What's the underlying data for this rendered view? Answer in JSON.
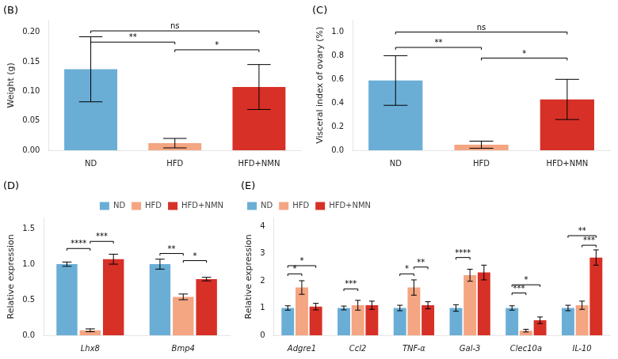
{
  "chart_data": [
    {
      "type": "bar",
      "title": "(B)",
      "categories": [
        "ND",
        "HFD",
        "HFD+NMN"
      ],
      "values": [
        0.137,
        0.012,
        0.107
      ],
      "errors": [
        0.055,
        0.008,
        0.038
      ],
      "colors": [
        "#6aaed6",
        "#f4a582",
        "#d73027"
      ],
      "ylabel": "Weight (g)",
      "ylim": [
        0,
        0.22
      ],
      "yticks": [
        {
          "value": 0.0,
          "label": "0.00"
        },
        0.05,
        {
          "value": 0.1,
          "label": "0.10"
        },
        0.15,
        {
          "value": 0.2,
          "label": "0.20"
        }
      ],
      "grid": false,
      "annotations": [
        {
          "from": "ND",
          "to": "HFD",
          "y": 0.183,
          "text": "**"
        },
        {
          "from": "ND",
          "to": "HFD+NMN",
          "y": 0.202,
          "text": "ns"
        },
        {
          "from": "HFD",
          "to": "HFD+NMN",
          "y": 0.17,
          "text": "*"
        }
      ]
    },
    {
      "type": "bar",
      "title": "(C)",
      "categories": [
        "ND",
        "HFD",
        "HFD+NMN"
      ],
      "values": [
        0.59,
        0.047,
        0.43
      ],
      "errors": [
        0.21,
        0.03,
        0.17
      ],
      "colors": [
        "#6aaed6",
        "#f4a582",
        "#d73027"
      ],
      "ylabel": "Visceral index of ovary (%)",
      "ylim": [
        0,
        1.1
      ],
      "yticks": [
        {
          "value": 0.0,
          "label": "0.0"
        },
        0.2,
        0.4,
        0.6,
        0.8,
        {
          "value": 1.0,
          "label": "1.0"
        }
      ],
      "grid": false,
      "annotations": [
        {
          "from": "ND",
          "to": "HFD",
          "y": 0.87,
          "text": "**"
        },
        {
          "from": "ND",
          "to": "HFD+NMN",
          "y": 1.0,
          "text": "ns"
        },
        {
          "from": "HFD",
          "to": "HFD+NMN",
          "y": 0.78,
          "text": "*"
        }
      ]
    },
    {
      "type": "bar",
      "title": "(D)",
      "categories": [
        "Lhx8",
        "Bmp4"
      ],
      "series": [
        {
          "name": "ND",
          "color": "#6aaed6",
          "values": [
            1.0,
            1.0
          ],
          "errors": [
            0.03,
            0.07
          ]
        },
        {
          "name": "HFD",
          "color": "#f4a582",
          "values": [
            0.07,
            0.54
          ],
          "errors": [
            0.02,
            0.04
          ]
        },
        {
          "name": "HFD+NMN",
          "color": "#d73027",
          "values": [
            1.07,
            0.79
          ],
          "errors": [
            0.07,
            0.025
          ]
        }
      ],
      "ylabel": "Relative expression",
      "ylim": [
        0,
        1.65
      ],
      "yticks": [
        {
          "value": 0.0,
          "label": "0.0"
        },
        0.5,
        {
          "value": 1.0,
          "label": "1.0"
        },
        1.5
      ],
      "grid": false,
      "legend": "upper right",
      "annotations": [
        {
          "category": "Lhx8",
          "from": "ND",
          "to": "HFD",
          "y": 1.22,
          "text": "****"
        },
        {
          "category": "Lhx8",
          "from": "HFD",
          "to": "HFD+NMN",
          "y": 1.32,
          "text": "***"
        },
        {
          "category": "Bmp4",
          "from": "ND",
          "to": "HFD",
          "y": 1.15,
          "text": "**"
        },
        {
          "category": "Bmp4",
          "from": "HFD",
          "to": "HFD+NMN",
          "y": 1.05,
          "text": "*"
        }
      ]
    },
    {
      "type": "bar",
      "title": "(E)",
      "categories": [
        "Adgre1",
        "Ccl2",
        "TNF-α",
        "Gal-3",
        "Clec10a",
        "IL-10"
      ],
      "series": [
        {
          "name": "ND",
          "color": "#6aaed6",
          "values": [
            1.0,
            1.0,
            1.0,
            1.0,
            1.0,
            1.0
          ],
          "errors": [
            0.08,
            0.07,
            0.1,
            0.12,
            0.08,
            0.1
          ]
        },
        {
          "name": "HFD",
          "color": "#f4a582",
          "values": [
            1.75,
            1.1,
            1.75,
            2.2,
            0.17,
            1.1
          ],
          "errors": [
            0.25,
            0.18,
            0.28,
            0.22,
            0.05,
            0.15
          ]
        },
        {
          "name": "HFD+NMN",
          "color": "#d73027",
          "values": [
            1.05,
            1.1,
            1.1,
            2.3,
            0.55,
            2.85
          ],
          "errors": [
            0.12,
            0.15,
            0.13,
            0.27,
            0.12,
            0.28
          ]
        }
      ],
      "ylabel": "Relative expression",
      "ylim": [
        0,
        4.3
      ],
      "yticks": [
        0,
        1,
        2,
        3,
        4
      ],
      "grid": false,
      "legend": "upper left",
      "annotations": [
        {
          "category": "Adgre1",
          "from": "ND",
          "to": "HFD",
          "y": 2.25,
          "text": "*"
        },
        {
          "category": "Adgre1",
          "from": "ND",
          "to": "HFD+NMN",
          "y": 2.55,
          "text": "*"
        },
        {
          "category": "Ccl2",
          "from": "ND",
          "to": "HFD",
          "y": 1.7,
          "text": "***"
        },
        {
          "category": "TNF-α",
          "from": "ND",
          "to": "HFD",
          "y": 2.25,
          "text": "*"
        },
        {
          "category": "TNF-α",
          "from": "HFD",
          "to": "HFD+NMN",
          "y": 2.5,
          "text": "**"
        },
        {
          "category": "Gal-3",
          "from": "ND",
          "to": "HFD",
          "y": 2.85,
          "text": "****"
        },
        {
          "category": "Clec10a",
          "from": "ND",
          "to": "HFD",
          "y": 1.55,
          "text": "***"
        },
        {
          "category": "Clec10a",
          "from": "ND",
          "to": "HFD+NMN",
          "y": 1.85,
          "text": "*"
        },
        {
          "category": "IL-10",
          "from": "HFD",
          "to": "HFD+NMN",
          "y": 3.3,
          "text": "***"
        },
        {
          "category": "IL-10",
          "from": "ND",
          "to": "HFD+NMN",
          "y": 3.65,
          "text": "**"
        }
      ]
    }
  ]
}
